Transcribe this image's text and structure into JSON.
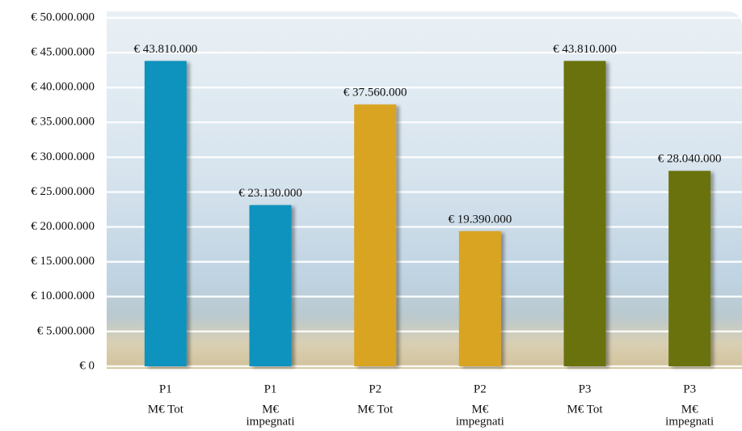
{
  "chart_data": {
    "type": "bar",
    "categories": [
      [
        "P1",
        "M€ Tot"
      ],
      [
        "P1",
        "M€",
        "impegnati"
      ],
      [
        "P2",
        "M€ Tot"
      ],
      [
        "P2",
        "M€",
        "impegnati"
      ],
      [
        "P3",
        "M€ Tot"
      ],
      [
        "P3",
        "M€",
        "impegnati"
      ]
    ],
    "values": [
      43810000,
      23130000,
      37560000,
      19390000,
      43810000,
      28040000
    ],
    "value_labels": [
      "€ 43.810.000",
      "€ 23.130.000",
      "€ 37.560.000",
      "€ 19.390.000",
      "€ 43.810.000",
      "€ 28.040.000"
    ],
    "colors": [
      "#0a93bd",
      "#0a93bd",
      "#d9a424",
      "#d9a424",
      "#6b720a",
      "#6b720a"
    ],
    "ylim": [
      0,
      50000000
    ],
    "yticks": [
      {
        "value": 0,
        "label": "€ 0"
      },
      {
        "value": 5000000,
        "label": "€ 5.000.000"
      },
      {
        "value": 10000000,
        "label": "€ 10.000.000"
      },
      {
        "value": 15000000,
        "label": "€ 15.000.000"
      },
      {
        "value": 20000000,
        "label": "€ 20.000.000"
      },
      {
        "value": 25000000,
        "label": "€ 25.000.000"
      },
      {
        "value": 30000000,
        "label": "€ 30.000.000"
      },
      {
        "value": 35000000,
        "label": "€ 35.000.000"
      },
      {
        "value": 40000000,
        "label": "€ 40.000.000"
      },
      {
        "value": 45000000,
        "label": "€ 45.000.000"
      },
      {
        "value": 50000000,
        "label": "€ 50.000.000"
      }
    ],
    "grid": true
  }
}
